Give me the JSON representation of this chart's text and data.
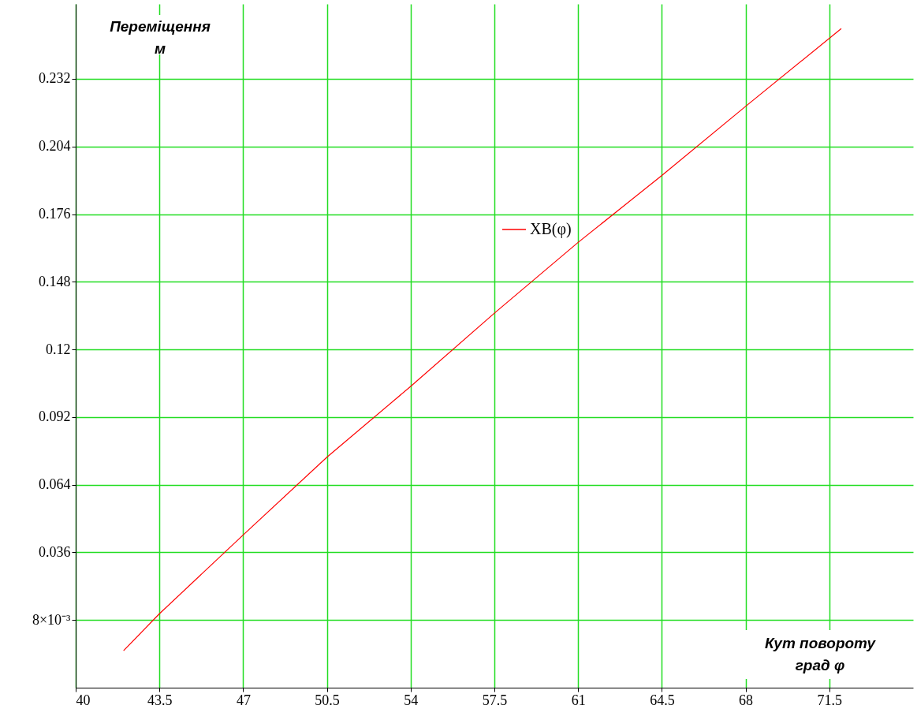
{
  "chart_data": {
    "type": "line",
    "xlabel": "Кут повороту\nград    φ",
    "ylabel": "Переміщення\nм",
    "x": [
      42,
      43.5,
      47,
      50.5,
      54,
      57.5,
      61,
      64.5,
      68,
      72
    ],
    "series": [
      {
        "name": "XB(φ)",
        "color": "#ff0000",
        "values": [
          -0.0047,
          0.0106,
          0.0432,
          0.0754,
          0.1047,
          0.135,
          0.1643,
          0.192,
          0.2206,
          0.2528
        ]
      }
    ],
    "xlim": [
      40,
      75
    ],
    "xticks": [
      40,
      43.5,
      47,
      50.5,
      54,
      57.5,
      61,
      64.5,
      68,
      71.5
    ],
    "ylim": [
      -0.02,
      0.263
    ],
    "yticks": [
      {
        "value": 0.008,
        "label": "8×10⁻³"
      },
      0.036,
      0.064,
      0.092,
      0.12,
      0.148,
      0.176,
      0.204,
      0.232
    ],
    "grid": true,
    "legend": "top",
    "marker": "none",
    "line_style": "solid"
  }
}
